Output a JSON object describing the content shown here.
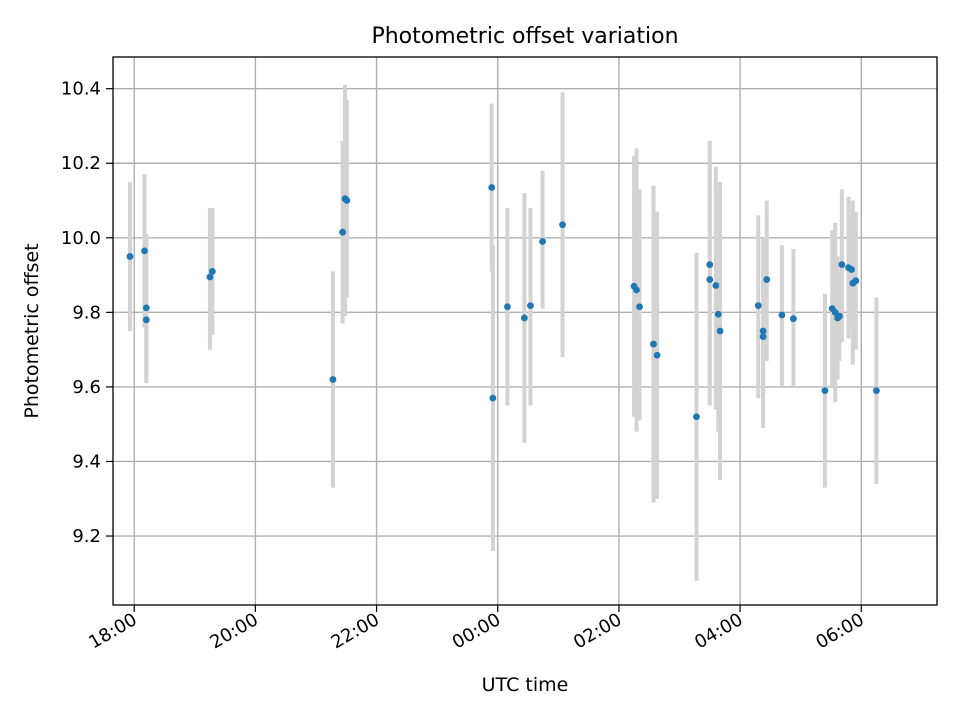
{
  "chart_data": {
    "type": "scatter",
    "title": "Photometric offset variation",
    "xlabel": "UTC time",
    "ylabel": "Photometric offset",
    "x_unit": "hours since 00:00 UTC",
    "xlim": [
      -6.35,
      7.25
    ],
    "ylim": [
      9.015,
      10.485
    ],
    "grid": true,
    "colors": {
      "point": "#1f77b4",
      "errorbar": "#d3d3d3",
      "grid": "#b0b0b0",
      "axes": "#000000"
    },
    "x_ticks": [
      {
        "value": -6,
        "label": "18:00"
      },
      {
        "value": -4,
        "label": "20:00"
      },
      {
        "value": -2,
        "label": "22:00"
      },
      {
        "value": 0,
        "label": "00:00"
      },
      {
        "value": 2,
        "label": "02:00"
      },
      {
        "value": 4,
        "label": "04:00"
      },
      {
        "value": 6,
        "label": "06:00"
      }
    ],
    "y_ticks": [
      {
        "value": 9.2,
        "label": "9.2"
      },
      {
        "value": 9.4,
        "label": "9.4"
      },
      {
        "value": 9.6,
        "label": "9.6"
      },
      {
        "value": 9.8,
        "label": "9.8"
      },
      {
        "value": 10.0,
        "label": "10.0"
      },
      {
        "value": 10.2,
        "label": "10.2"
      },
      {
        "value": 10.4,
        "label": "10.4"
      }
    ],
    "series": [
      {
        "name": "offset",
        "points": [
          {
            "x": -6.07,
            "y": 9.95,
            "lo": 9.75,
            "hi": 10.15
          },
          {
            "x": -5.83,
            "y": 9.965,
            "lo": 9.76,
            "hi": 10.17
          },
          {
            "x": -5.8,
            "y": 9.812,
            "lo": 9.61,
            "hi": 10.01
          },
          {
            "x": -5.8,
            "y": 9.78,
            "lo": 9.62,
            "hi": 9.95
          },
          {
            "x": -4.75,
            "y": 9.895,
            "lo": 9.7,
            "hi": 10.08
          },
          {
            "x": -4.71,
            "y": 9.91,
            "lo": 9.74,
            "hi": 10.08
          },
          {
            "x": -2.72,
            "y": 9.62,
            "lo": 9.33,
            "hi": 9.91
          },
          {
            "x": -2.56,
            "y": 10.015,
            "lo": 9.77,
            "hi": 10.26
          },
          {
            "x": -2.52,
            "y": 10.105,
            "lo": 9.79,
            "hi": 10.41
          },
          {
            "x": -2.49,
            "y": 10.1,
            "lo": 9.84,
            "hi": 10.37
          },
          {
            "x": -0.1,
            "y": 10.135,
            "lo": 9.91,
            "hi": 10.36
          },
          {
            "x": -0.08,
            "y": 9.57,
            "lo": 9.16,
            "hi": 9.98
          },
          {
            "x": 0.16,
            "y": 9.815,
            "lo": 9.55,
            "hi": 10.08
          },
          {
            "x": 0.44,
            "y": 9.785,
            "lo": 9.45,
            "hi": 10.12
          },
          {
            "x": 0.54,
            "y": 9.818,
            "lo": 9.55,
            "hi": 10.08
          },
          {
            "x": 0.74,
            "y": 9.99,
            "lo": 9.81,
            "hi": 10.18
          },
          {
            "x": 1.07,
            "y": 10.035,
            "lo": 9.68,
            "hi": 10.39
          },
          {
            "x": 2.25,
            "y": 9.87,
            "lo": 9.52,
            "hi": 10.22
          },
          {
            "x": 2.29,
            "y": 9.86,
            "lo": 9.48,
            "hi": 10.24
          },
          {
            "x": 2.34,
            "y": 9.815,
            "lo": 9.51,
            "hi": 10.13
          },
          {
            "x": 2.57,
            "y": 9.715,
            "lo": 9.29,
            "hi": 10.14
          },
          {
            "x": 2.63,
            "y": 9.685,
            "lo": 9.3,
            "hi": 10.07
          },
          {
            "x": 3.28,
            "y": 9.52,
            "lo": 9.08,
            "hi": 9.96
          },
          {
            "x": 3.5,
            "y": 9.928,
            "lo": 9.6,
            "hi": 10.26
          },
          {
            "x": 3.5,
            "y": 9.888,
            "lo": 9.55,
            "hi": 10.2
          },
          {
            "x": 3.6,
            "y": 9.872,
            "lo": 9.54,
            "hi": 10.19
          },
          {
            "x": 3.64,
            "y": 9.795,
            "lo": 9.48,
            "hi": 10.11
          },
          {
            "x": 3.67,
            "y": 9.75,
            "lo": 9.35,
            "hi": 10.15
          },
          {
            "x": 4.3,
            "y": 9.818,
            "lo": 9.57,
            "hi": 10.06
          },
          {
            "x": 4.38,
            "y": 9.75,
            "lo": 9.49,
            "hi": 10.0
          },
          {
            "x": 4.38,
            "y": 9.735,
            "lo": 9.57,
            "hi": 9.9
          },
          {
            "x": 4.44,
            "y": 9.888,
            "lo": 9.67,
            "hi": 10.1
          },
          {
            "x": 4.69,
            "y": 9.793,
            "lo": 9.6,
            "hi": 9.98
          },
          {
            "x": 4.88,
            "y": 9.783,
            "lo": 9.6,
            "hi": 9.97
          },
          {
            "x": 5.4,
            "y": 9.59,
            "lo": 9.33,
            "hi": 9.85
          },
          {
            "x": 5.52,
            "y": 9.81,
            "lo": 9.6,
            "hi": 10.02
          },
          {
            "x": 5.57,
            "y": 9.8,
            "lo": 9.56,
            "hi": 10.04
          },
          {
            "x": 5.61,
            "y": 9.785,
            "lo": 9.62,
            "hi": 9.95
          },
          {
            "x": 5.64,
            "y": 9.79,
            "lo": 9.67,
            "hi": 9.91
          },
          {
            "x": 5.68,
            "y": 9.928,
            "lo": 9.72,
            "hi": 10.13
          },
          {
            "x": 5.79,
            "y": 9.92,
            "lo": 9.73,
            "hi": 10.11
          },
          {
            "x": 5.84,
            "y": 9.915,
            "lo": 9.77,
            "hi": 10.06
          },
          {
            "x": 5.86,
            "y": 9.878,
            "lo": 9.66,
            "hi": 10.1
          },
          {
            "x": 5.91,
            "y": 9.885,
            "lo": 9.7,
            "hi": 10.07
          },
          {
            "x": 6.25,
            "y": 9.59,
            "lo": 9.34,
            "hi": 9.84
          }
        ]
      }
    ]
  }
}
